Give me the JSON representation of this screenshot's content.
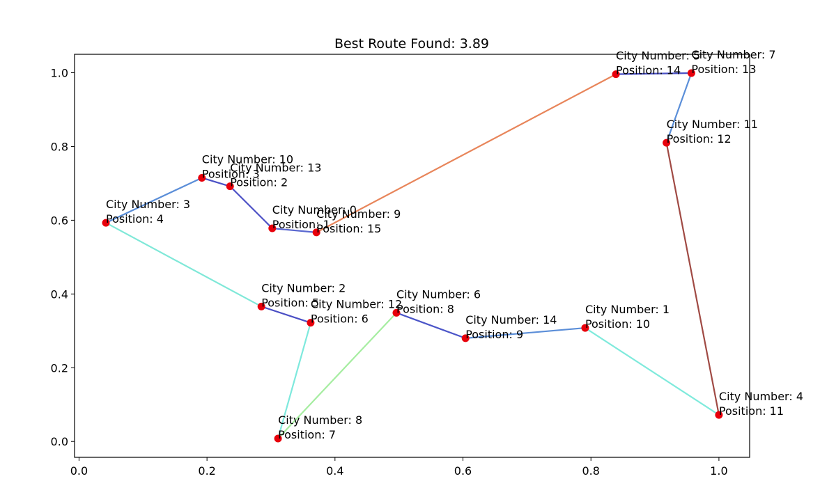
{
  "chart_data": {
    "type": "scatter",
    "title": "Best Route Found: 3.89",
    "xlabel": "",
    "ylabel": "",
    "xlim": [
      -0.007,
      1.048
    ],
    "ylim": [
      -0.043,
      1.05
    ],
    "xticks": [
      0.0,
      0.2,
      0.4,
      0.6,
      0.8,
      1.0
    ],
    "yticks": [
      0.0,
      0.2,
      0.4,
      0.6,
      0.8,
      1.0
    ],
    "xtick_labels": [
      "0.0",
      "0.2",
      "0.4",
      "0.6",
      "0.8",
      "1.0"
    ],
    "ytick_labels": [
      "0.0",
      "0.2",
      "0.4",
      "0.6",
      "0.8",
      "1.0"
    ],
    "grid": false,
    "point_color": "#e8000b",
    "cities": [
      {
        "x": 0.302,
        "y": 0.578,
        "label1": "City Number: 0",
        "label2": "Position: 1"
      },
      {
        "x": 0.791,
        "y": 0.308,
        "label1": "City Number: 1",
        "label2": "Position: 10"
      },
      {
        "x": 0.285,
        "y": 0.366,
        "label1": "City Number: 2",
        "label2": "Position: 5"
      },
      {
        "x": 0.042,
        "y": 0.593,
        "label1": "City Number: 3",
        "label2": "Position: 4"
      },
      {
        "x": 1.0,
        "y": 0.072,
        "label1": "City Number: 4",
        "label2": "Position: 11"
      },
      {
        "x": 0.839,
        "y": 0.996,
        "label1": "City Number: 5",
        "label2": "Position: 14"
      },
      {
        "x": 0.496,
        "y": 0.349,
        "label1": "City Number: 6",
        "label2": "Position: 8"
      },
      {
        "x": 0.957,
        "y": 0.999,
        "label1": "City Number: 7",
        "label2": "Position: 13"
      },
      {
        "x": 0.311,
        "y": 0.008,
        "label1": "City Number: 8",
        "label2": "Position: 7"
      },
      {
        "x": 0.371,
        "y": 0.567,
        "label1": "City Number: 9",
        "label2": "Position: 15"
      },
      {
        "x": 0.192,
        "y": 0.715,
        "label1": "City Number: 10",
        "label2": "Position: 3"
      },
      {
        "x": 0.918,
        "y": 0.81,
        "label1": "City Number: 11",
        "label2": "Position: 12"
      },
      {
        "x": 0.362,
        "y": 0.322,
        "label1": "City Number: 12",
        "label2": "Position: 6"
      },
      {
        "x": 0.236,
        "y": 0.692,
        "label1": "City Number: 13",
        "label2": "Position: 2"
      },
      {
        "x": 0.604,
        "y": 0.28,
        "label1": "City Number: 14",
        "label2": "Position: 9"
      }
    ],
    "route": [
      {
        "from": 9,
        "to": 0,
        "color": "#5a68d0"
      },
      {
        "from": 0,
        "to": 13,
        "color": "#4b4fc5"
      },
      {
        "from": 13,
        "to": 10,
        "color": "#4a50c5"
      },
      {
        "from": 10,
        "to": 3,
        "color": "#5b8ed8"
      },
      {
        "from": 3,
        "to": 2,
        "color": "#7fe8d8"
      },
      {
        "from": 2,
        "to": 12,
        "color": "#4a4ec4"
      },
      {
        "from": 12,
        "to": 8,
        "color": "#7ee9dd"
      },
      {
        "from": 8,
        "to": 6,
        "color": "#a6eda1"
      },
      {
        "from": 6,
        "to": 14,
        "color": "#4b55c8"
      },
      {
        "from": 14,
        "to": 1,
        "color": "#5b8ed8"
      },
      {
        "from": 1,
        "to": 4,
        "color": "#7feadc"
      },
      {
        "from": 4,
        "to": 11,
        "color": "#a04a44"
      },
      {
        "from": 11,
        "to": 7,
        "color": "#5b8fd9"
      },
      {
        "from": 7,
        "to": 5,
        "color": "#4a50c5"
      },
      {
        "from": 5,
        "to": 9,
        "color": "#e8855a"
      }
    ]
  }
}
